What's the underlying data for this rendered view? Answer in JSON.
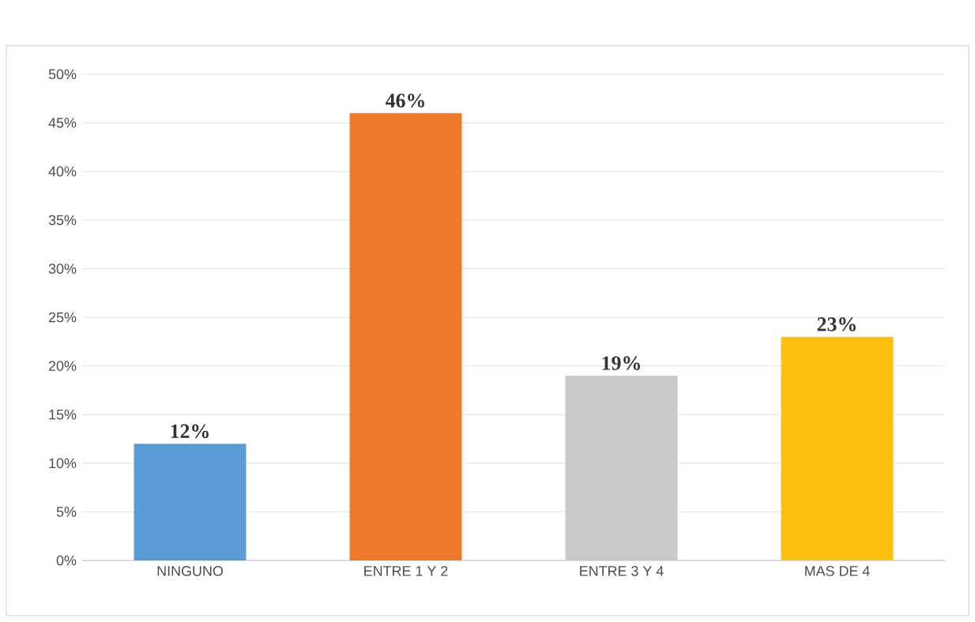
{
  "chart_data": {
    "type": "bar",
    "categories": [
      "NINGUNO",
      "ENTRE 1 Y 2",
      "ENTRE 3 Y 4",
      "MAS DE 4"
    ],
    "values": [
      12,
      46,
      19,
      23
    ],
    "colors": [
      "#5b9bd5",
      "#f07a2c",
      "#c9c9c9",
      "#fdc010"
    ],
    "value_labels": [
      "12%",
      "46%",
      "19%",
      "23%"
    ],
    "ylim": [
      0,
      50
    ],
    "yticks": [
      {
        "value": 0,
        "label": "0%"
      },
      {
        "value": 5,
        "label": "5%"
      },
      {
        "value": 10,
        "label": "10%"
      },
      {
        "value": 15,
        "label": "15%"
      },
      {
        "value": 20,
        "label": "20%"
      },
      {
        "value": 25,
        "label": "25%"
      },
      {
        "value": 30,
        "label": "30%"
      },
      {
        "value": 35,
        "label": "35%"
      },
      {
        "value": 40,
        "label": "40%"
      },
      {
        "value": 45,
        "label": "45%"
      },
      {
        "value": 50,
        "label": "50%"
      }
    ],
    "grid": "y"
  }
}
